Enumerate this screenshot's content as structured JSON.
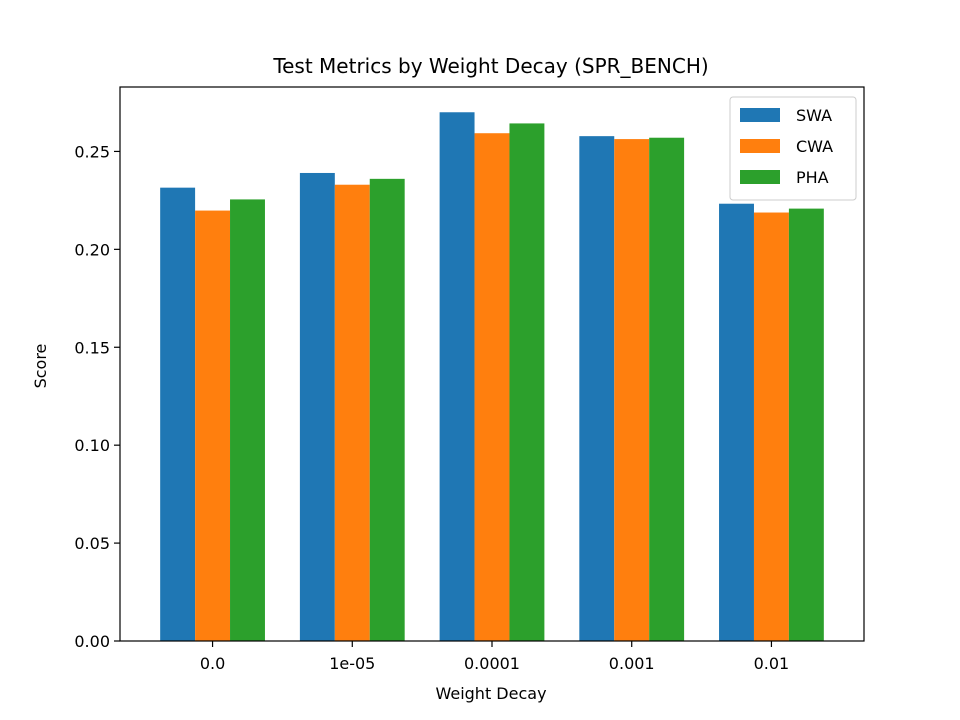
{
  "chart_data": {
    "type": "bar",
    "title": "Test Metrics by Weight Decay (SPR_BENCH)",
    "xlabel": "Weight Decay",
    "ylabel": "Score",
    "categories": [
      "0.0",
      "1e-05",
      "0.0001",
      "0.001",
      "0.01"
    ],
    "series": [
      {
        "name": "SWA",
        "color": "#1f77b4",
        "values": [
          0.2315,
          0.239,
          0.27,
          0.2578,
          0.2233
        ]
      },
      {
        "name": "CWA",
        "color": "#ff7f0e",
        "values": [
          0.2198,
          0.233,
          0.2593,
          0.2563,
          0.2188
        ]
      },
      {
        "name": "PHA",
        "color": "#2ca02c",
        "values": [
          0.2255,
          0.236,
          0.2643,
          0.257,
          0.2208
        ]
      }
    ],
    "ylim": [
      0,
      0.2829
    ],
    "yticks": [
      0.0,
      0.05,
      0.1,
      0.15,
      0.2,
      0.25
    ],
    "ytick_labels": [
      "0.00",
      "0.05",
      "0.10",
      "0.15",
      "0.20",
      "0.25"
    ],
    "grid": false,
    "legend_position": "top-right"
  }
}
